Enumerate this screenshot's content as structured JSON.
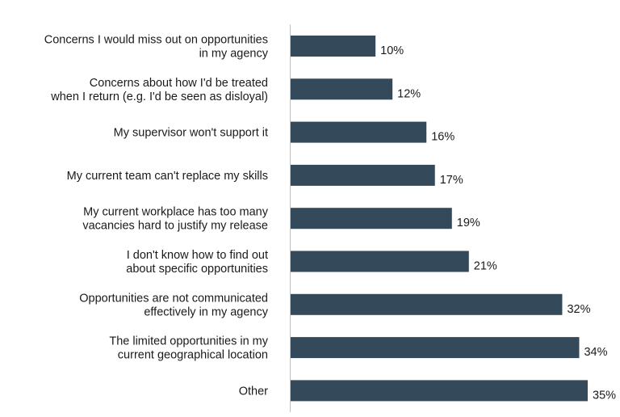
{
  "chart_data": {
    "type": "bar",
    "orientation": "horizontal",
    "categories": [
      [
        "Concerns I would miss out on opportunities",
        "in my agency"
      ],
      [
        "Concerns about how I'd be treated",
        "when I return (e.g. I'd be seen as disloyal)"
      ],
      [
        "My supervisor won't support it"
      ],
      [
        "My current team can't replace my skills"
      ],
      [
        "My current workplace has too many",
        "vacancies hard to justify my release"
      ],
      [
        "I don't know how to find out",
        "about specific opportunities"
      ],
      [
        "Opportunities are not communicated",
        "effectively in my agency"
      ],
      [
        "The limited opportunities in my",
        "current geographical location"
      ],
      [
        "Other"
      ]
    ],
    "values": [
      10,
      12,
      16,
      17,
      19,
      21,
      32,
      34,
      35
    ],
    "value_labels": [
      "10%",
      "12%",
      "16%",
      "17%",
      "19%",
      "21%",
      "32%",
      "34%",
      "35%"
    ],
    "xlim": [
      0,
      35
    ],
    "bar_color": "#344a5a",
    "grid": false,
    "legend": "none"
  }
}
